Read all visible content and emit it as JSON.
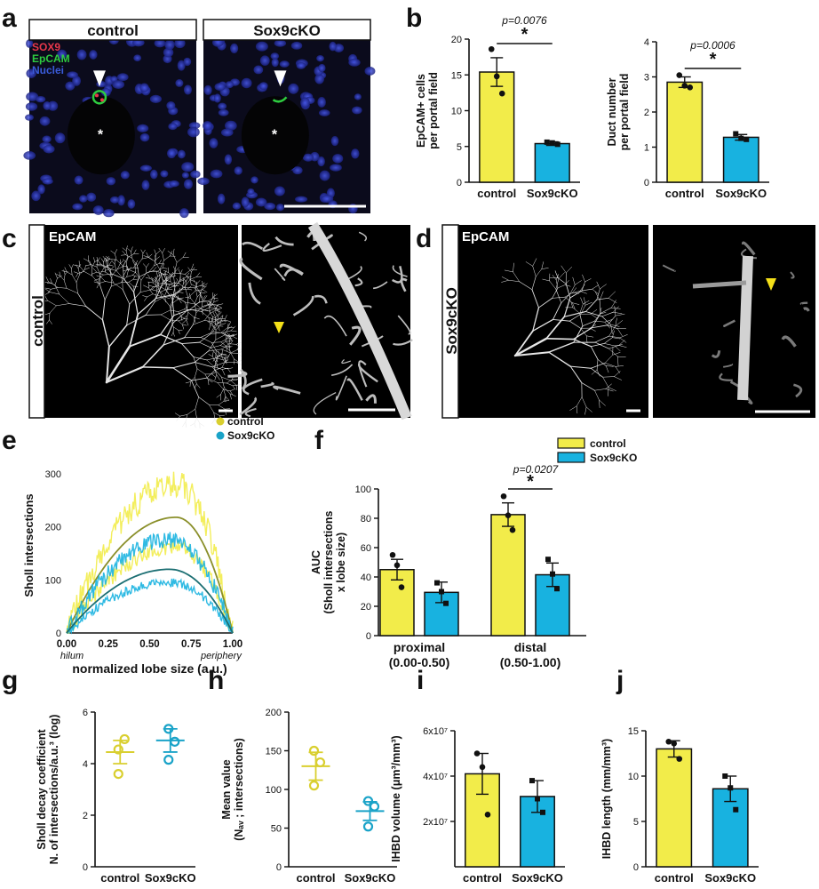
{
  "colors": {
    "control": "#F2EC4A",
    "sox9": "#18B2E0",
    "control_dot": "#D9CF2F",
    "sox9_dot": "#1AA3C8",
    "fit_control": "#8A8F2A",
    "fit_sox9": "#1C6F73"
  },
  "panel_letters": [
    "a",
    "b",
    "c",
    "d",
    "e",
    "f",
    "g",
    "h",
    "i",
    "j"
  ],
  "panel_a": {
    "headers": [
      "control",
      "Sox9cKO"
    ],
    "legend": [
      "SOX9",
      "EpCAM",
      "Nuclei"
    ],
    "legend_colors": [
      "#E8384A",
      "#2ECC40",
      "#3A5BD9"
    ],
    "lumen_mark": "*"
  },
  "panel_c": {
    "stain": "EpCAM",
    "side_label": "control"
  },
  "panel_d": {
    "stain": "EpCAM",
    "side_label": "Sox9cKO"
  },
  "chart_data": [
    {
      "id": "b1",
      "type": "bar",
      "categories": [
        "control",
        "Sox9cKO"
      ],
      "values": [
        15.4,
        5.4
      ],
      "errors": [
        2.0,
        0.25
      ],
      "points": [
        [
          18.6,
          14.8,
          12.4
        ],
        [
          5.6,
          5.5,
          5.3
        ]
      ],
      "ylabel": "EpCAM+ cells\nper portal field",
      "ylim": [
        0,
        20
      ],
      "yticks": [
        0,
        5,
        10,
        15,
        20
      ],
      "pvalue": "p=0.0076",
      "sig": "*"
    },
    {
      "id": "b2",
      "type": "bar",
      "categories": [
        "control",
        "Sox9cKO"
      ],
      "values": [
        2.85,
        1.28
      ],
      "errors": [
        0.15,
        0.08
      ],
      "points": [
        [
          3.05,
          2.75,
          2.7
        ],
        [
          1.38,
          1.25,
          1.22
        ]
      ],
      "ylabel": "Duct number\nper portal field",
      "ylim": [
        0,
        4
      ],
      "yticks": [
        0,
        1,
        2,
        3,
        4
      ],
      "pvalue": "p=0.0006",
      "sig": "*"
    },
    {
      "id": "e",
      "type": "line",
      "title": "",
      "xlabel": "normalized lobe size (a.u.)",
      "ylabel": "Sholl intersections",
      "xlim": [
        0,
        1
      ],
      "ylim": [
        0,
        330
      ],
      "xticks": [
        "0.00",
        "0.25",
        "0.50",
        "0.75",
        "1.00"
      ],
      "yticks": [
        0,
        100,
        200,
        300
      ],
      "x_end_labels": [
        "hilum",
        "periphery"
      ],
      "series": [
        {
          "name": "control",
          "fit_peak_x": 0.66,
          "fit_peak_y": 218,
          "upper_peak": 280,
          "lower_peak": 160
        },
        {
          "name": "Sox9cKO",
          "fit_peak_x": 0.62,
          "fit_peak_y": 120,
          "upper_peak": 175,
          "lower_peak": 95
        }
      ]
    },
    {
      "id": "f",
      "type": "bar",
      "groups": [
        "proximal\n(0.00-0.50)",
        "distal\n(0.50-1.00)"
      ],
      "series": [
        {
          "name": "control",
          "values": [
            45,
            82.5
          ],
          "errors": [
            7,
            8
          ],
          "points": [
            [
              55,
              48,
              33
            ],
            [
              95,
              82,
              72
            ]
          ]
        },
        {
          "name": "Sox9cKO",
          "values": [
            29.5,
            41.5
          ],
          "errors": [
            7,
            8
          ],
          "points": [
            [
              36,
              30,
              22
            ],
            [
              52,
              42,
              32
            ]
          ]
        }
      ],
      "ylabel": "AUC\n(Sholl intersections\nx lobe size)",
      "ylim": [
        0,
        100
      ],
      "yticks": [
        0,
        20,
        40,
        60,
        80,
        100
      ],
      "pvalue": "p=0.0207",
      "sig": "*"
    },
    {
      "id": "g",
      "type": "scatter",
      "categories": [
        "control",
        "Sox9cKO"
      ],
      "means": [
        4.45,
        4.9
      ],
      "errors": [
        0.45,
        0.45
      ],
      "points": [
        [
          4.55,
          4.95,
          3.6
        ],
        [
          5.35,
          4.85,
          4.15
        ]
      ],
      "ylabel": "Sholl decay coefficient\nN. of intersections/a.u.³ (log)",
      "ylim": [
        0,
        6
      ],
      "yticks": [
        0,
        2,
        4,
        6
      ]
    },
    {
      "id": "h",
      "type": "scatter",
      "categories": [
        "control",
        "Sox9cKO"
      ],
      "means": [
        130,
        72
      ],
      "errors": [
        18,
        12
      ],
      "points": [
        [
          150,
          135,
          105
        ],
        [
          85,
          78,
          52
        ]
      ],
      "ylabel": "Mean value\n(Nₐᵥ ; intersections)",
      "ylim": [
        0,
        200
      ],
      "yticks": [
        0,
        50,
        100,
        150,
        200
      ]
    },
    {
      "id": "i",
      "type": "bar",
      "categories": [
        "control",
        "Sox9cKO"
      ],
      "values": [
        41000000,
        31000000
      ],
      "errors": [
        9000000,
        7000000
      ],
      "points": [
        [
          50000000,
          44000000,
          23000000
        ],
        [
          38000000,
          30000000,
          24000000
        ]
      ],
      "ylabel": "IHBD volume (μm³/mm³)",
      "ylim": [
        0,
        60000000
      ],
      "ytick_values": [
        20000000,
        40000000,
        60000000
      ],
      "ytick_labels": [
        "2x10⁷",
        "4x10⁷",
        "6x10⁷"
      ]
    },
    {
      "id": "j",
      "type": "bar",
      "categories": [
        "control",
        "Sox9cKO"
      ],
      "values": [
        13,
        8.6
      ],
      "errors": [
        0.9,
        1.4
      ],
      "points": [
        [
          13.8,
          13.6,
          11.9
        ],
        [
          10,
          8.7,
          6.3
        ]
      ],
      "ylabel": "IHBD length (mm/mm³)",
      "ylim": [
        0,
        15
      ],
      "yticks": [
        0,
        5,
        10,
        15
      ]
    }
  ],
  "legend": {
    "control": "control",
    "sox9": "Sox9cKO"
  }
}
